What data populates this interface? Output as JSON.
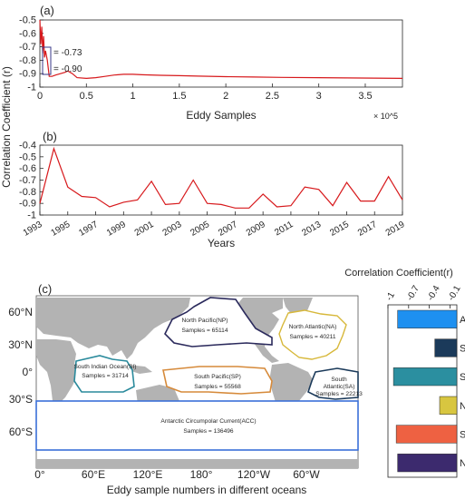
{
  "figure": {
    "shared_ylabel": "Correlation Coefficient (r)"
  },
  "chart_data": [
    {
      "panel": "(a)",
      "type": "line",
      "xlabel": "Eddy Samples",
      "x_exponent_label": "× 10^5",
      "ylabel": "Correlation Coefficient (r)",
      "xlim": [
        0,
        3.9
      ],
      "ylim": [
        -1,
        -0.5
      ],
      "x_unit_scale": 100000,
      "xticks": [
        0,
        0.5,
        1,
        1.5,
        2,
        2.5,
        3,
        3.5
      ],
      "xtick_labels": [
        "0",
        "0.5",
        "1",
        "1.5",
        "2",
        "2.5",
        "3",
        "3.5"
      ],
      "yticks": [
        -0.5,
        -0.6,
        -0.7,
        -0.8,
        -0.9,
        -1
      ],
      "ytick_labels": [
        "-0.5",
        "-0.6",
        "-0.7",
        "-0.8",
        "-0.9",
        "-1"
      ],
      "series": [
        {
          "color": "#d7191c",
          "x": [
            0,
            0.01,
            0.02,
            0.03,
            0.04,
            0.05,
            0.06,
            0.08,
            0.1,
            0.13,
            0.17,
            0.22,
            0.27,
            0.3,
            0.35,
            0.4,
            0.5,
            0.6,
            0.7,
            0.8,
            0.9,
            1.0,
            1.1,
            1.3,
            1.5,
            1.7,
            2.0,
            2.3,
            2.6,
            3.0,
            3.3,
            3.6,
            3.9
          ],
          "y": [
            -0.5,
            -0.68,
            -0.55,
            -0.75,
            -0.62,
            -0.78,
            -0.73,
            -0.8,
            -0.92,
            -0.92,
            -0.91,
            -0.9,
            -0.89,
            -0.88,
            -0.9,
            -0.93,
            -0.935,
            -0.93,
            -0.92,
            -0.91,
            -0.905,
            -0.905,
            -0.908,
            -0.912,
            -0.915,
            -0.918,
            -0.922,
            -0.925,
            -0.928,
            -0.93,
            -0.932,
            -0.933,
            -0.935
          ]
        }
      ],
      "annotations": [
        {
          "text": "= -0.73",
          "x": 0.08,
          "y": -0.73
        },
        {
          "text": "= -0.90",
          "x": 0.08,
          "y": -0.9
        }
      ]
    },
    {
      "panel": "(b)",
      "type": "line",
      "xlabel": "Years",
      "xlim": [
        1993,
        2019
      ],
      "ylim": [
        -1,
        -0.4
      ],
      "xticks": [
        1993,
        1995,
        1997,
        1999,
        2001,
        2003,
        2005,
        2007,
        2009,
        2011,
        2013,
        2015,
        2017,
        2019
      ],
      "xtick_labels": [
        "1993",
        "1995",
        "1997",
        "1999",
        "2001",
        "2003",
        "2005",
        "2007",
        "2009",
        "2011",
        "2013",
        "2015",
        "2017",
        "2019"
      ],
      "yticks": [
        -0.4,
        -0.5,
        -0.6,
        -0.7,
        -0.8,
        -0.9,
        -1
      ],
      "ytick_labels": [
        "-0.4",
        "-0.5",
        "-0.6",
        "-0.7",
        "-0.8",
        "-0.9",
        "-1"
      ],
      "series": [
        {
          "color": "#d7191c",
          "x": [
            1993,
            1994,
            1995,
            1996,
            1997,
            1998,
            1999,
            2000,
            2001,
            2002,
            2003,
            2004,
            2005,
            2006,
            2007,
            2008,
            2009,
            2010,
            2011,
            2012,
            2013,
            2014,
            2015,
            2016,
            2017,
            2018,
            2019
          ],
          "y": [
            -0.9,
            -0.43,
            -0.76,
            -0.84,
            -0.85,
            -0.93,
            -0.89,
            -0.87,
            -0.71,
            -0.91,
            -0.9,
            -0.7,
            -0.9,
            -0.91,
            -0.94,
            -0.94,
            -0.82,
            -0.93,
            -0.92,
            -0.76,
            -0.78,
            -0.92,
            -0.72,
            -0.88,
            -0.88,
            -0.67,
            -0.87
          ]
        }
      ]
    },
    {
      "panel": "(c)",
      "type": "map",
      "xlabel": "Eddy sample numbers in different oceans",
      "lon_ticks": [
        "0°",
        "60°E",
        "120°E",
        "180°",
        "120°W",
        "60°W"
      ],
      "lat_ticks": [
        "60°N",
        "30°N",
        "0°",
        "30°S",
        "60°S"
      ],
      "regions": [
        {
          "code": "NP",
          "name": "North Pacific(NP)",
          "samples_label": "Samples = 65114",
          "color": "#2b2a5c"
        },
        {
          "code": "NA",
          "name": "North Atlantic(NA)",
          "samples_label": "Samples = 40211",
          "color": "#d7b83a"
        },
        {
          "code": "SI",
          "name": "South Indian Ocean(SI)",
          "samples_label": "Samples = 31714",
          "color": "#2a8a9c"
        },
        {
          "code": "SP",
          "name": "South Pacific(SP)",
          "samples_label": "Samples = 55568",
          "color": "#d68a3a"
        },
        {
          "code": "SA",
          "name": "South Atlantic(SA)",
          "samples_label": "Samples = 22213",
          "color": "#1b3a5a"
        },
        {
          "code": "ACC",
          "name": "Antarctic Circumpolar Current(ACC)",
          "samples_label": "Samples = 136496",
          "color": "#3a6fd8"
        }
      ]
    },
    {
      "panel": "(c) bar",
      "type": "bar",
      "title": "Correlation Coefficient(r)",
      "orientation": "horizontal",
      "xlim": [
        -1,
        0
      ],
      "xticks": [
        -1,
        -0.7,
        -0.4,
        -0.1
      ],
      "xtick_labels": [
        "-1",
        "-0.7",
        "-0.4",
        "-0.1"
      ],
      "categories": [
        "ACC",
        "SA",
        "SI",
        "NA",
        "SP",
        "NP"
      ],
      "values": [
        -0.86,
        -0.32,
        -0.92,
        -0.25,
        -0.88,
        -0.86
      ],
      "colors": [
        "#1e90f0",
        "#1b3a5a",
        "#2b8fa0",
        "#d8c640",
        "#ee6142",
        "#3c2a6e"
      ]
    }
  ]
}
